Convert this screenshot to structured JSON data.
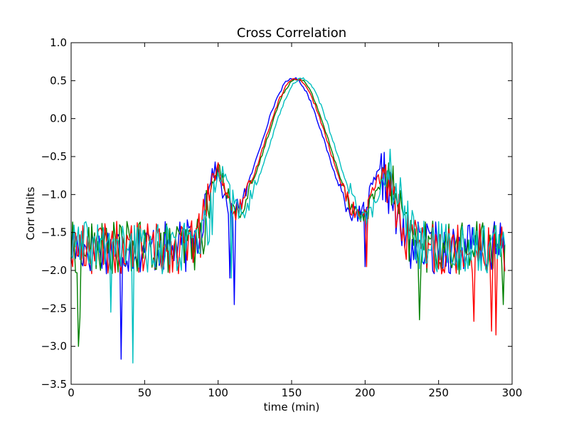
{
  "chart_data": {
    "type": "line",
    "title": "Cross Correlation",
    "xlabel": "time (min)",
    "ylabel": "Corr Units",
    "xlim": [
      0,
      300
    ],
    "ylim": [
      -3.5,
      1.0
    ],
    "grid": false,
    "x_ticks": [
      0,
      50,
      100,
      150,
      200,
      250,
      300
    ],
    "x_tick_labels": [
      "0",
      "50",
      "100",
      "150",
      "200",
      "250",
      "300"
    ],
    "y_ticks": [
      1.0,
      0.5,
      0.0,
      -0.5,
      -1.0,
      -1.5,
      -2.0,
      -2.5,
      -3.0,
      -3.5
    ],
    "y_tick_labels": [
      "1.0",
      "0.5",
      "0.0",
      "−0.5",
      "−1.0",
      "−1.5",
      "−2.0",
      "−2.5",
      "−3.0",
      "−3.5"
    ],
    "x_range": [
      0,
      295
    ],
    "series": [
      {
        "color": "#0000ff",
        "peak_x": 151,
        "outliers": [
          {
            "x": 34,
            "y": -3.17
          },
          {
            "x": 111,
            "y": -2.45
          },
          {
            "x": 108,
            "y": -2.1
          },
          {
            "x": 200,
            "y": -1.95
          }
        ]
      },
      {
        "color": "#008000",
        "peak_x": 154,
        "outliers": [
          {
            "x": 5,
            "y": -3.0
          },
          {
            "x": 6,
            "y": -2.62
          },
          {
            "x": 237,
            "y": -2.65
          },
          {
            "x": 294,
            "y": -2.45
          }
        ]
      },
      {
        "color": "#ff0000",
        "peak_x": 153,
        "outliers": [
          {
            "x": 274,
            "y": -2.67
          },
          {
            "x": 286,
            "y": -2.8
          },
          {
            "x": 289,
            "y": -2.85
          },
          {
            "x": 201,
            "y": -1.95
          }
        ]
      },
      {
        "color": "#00bfbf",
        "peak_x": 157,
        "outliers": [
          {
            "x": 42,
            "y": -3.22
          },
          {
            "x": 109,
            "y": -2.1
          },
          {
            "x": 27,
            "y": -2.55
          }
        ]
      }
    ],
    "profile": {
      "peak_y": 0.53,
      "side_lobe_y": -0.8,
      "side_lobe_left_x": 98,
      "side_lobe_right_x": 213,
      "baseline_y": -1.7,
      "trough_left_x": 110,
      "trough_right_x": 197,
      "noise_amplitude": 0.35
    }
  }
}
